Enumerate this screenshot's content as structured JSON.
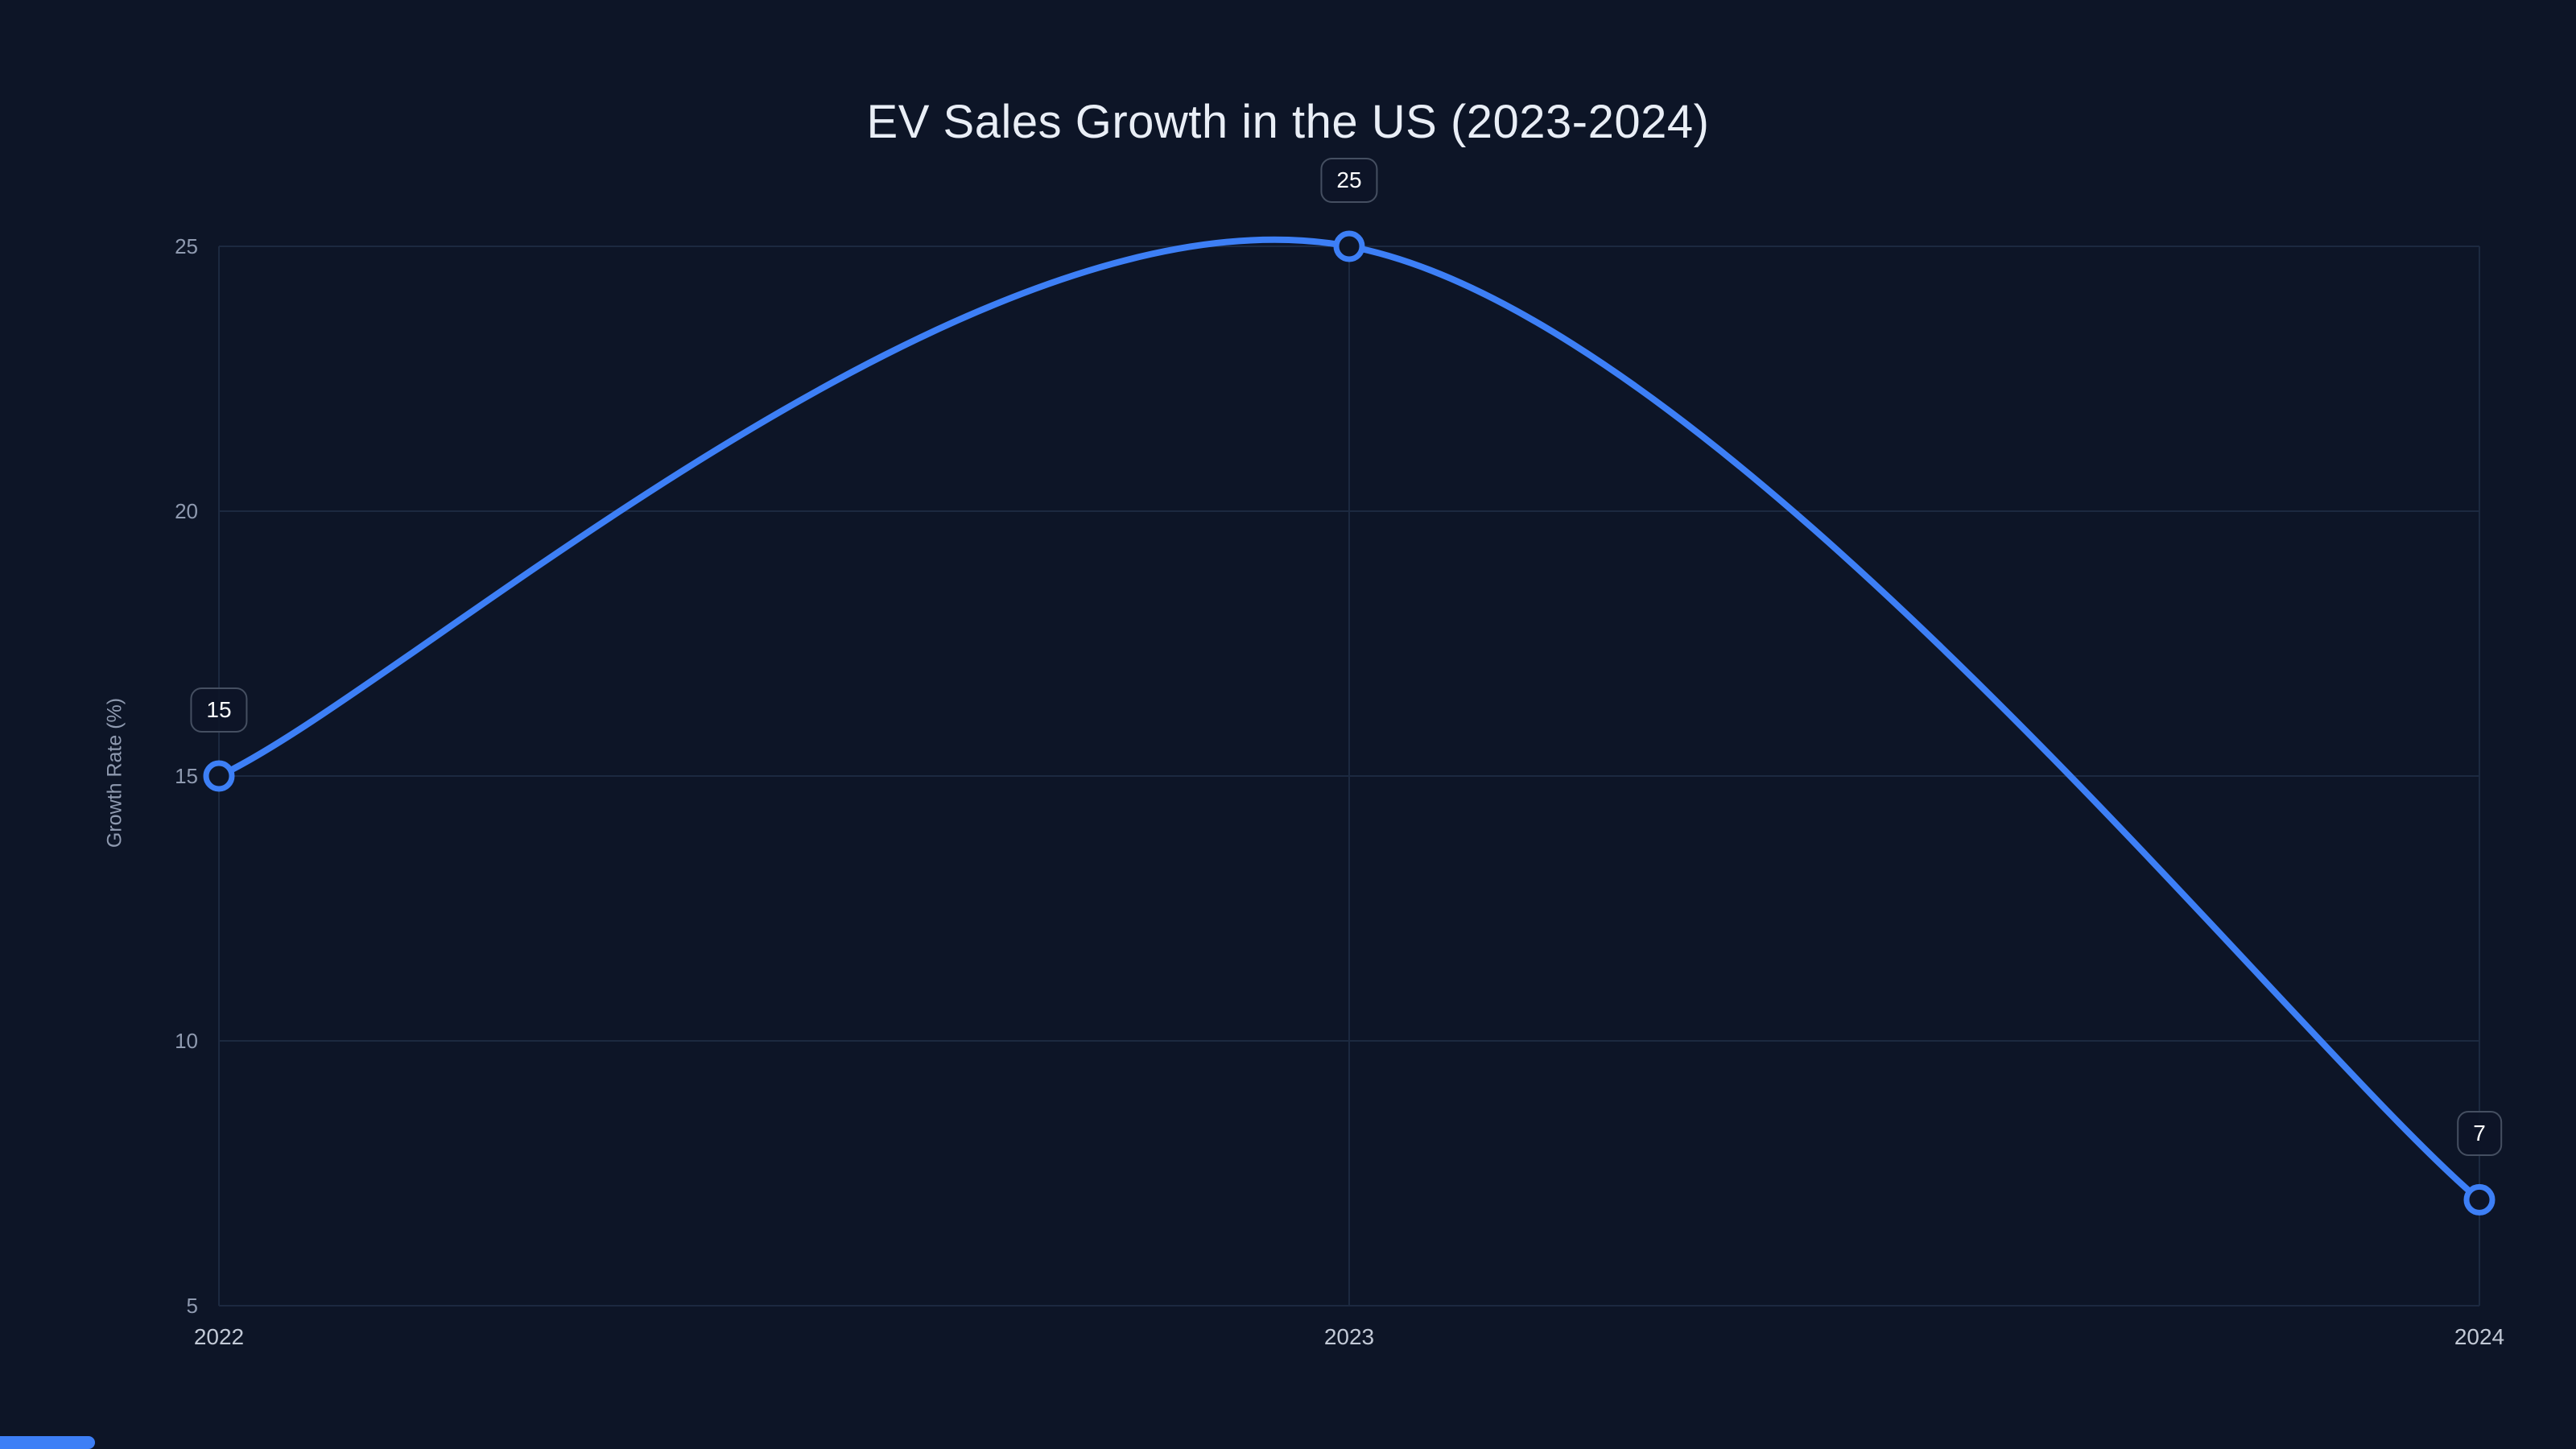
{
  "page": {
    "background": "#0d1527"
  },
  "chart_data": {
    "type": "line",
    "title": "EV Sales Growth in the US (2023-2024)",
    "xlabel": "",
    "ylabel": "Growth Rate (%)",
    "categories": [
      "2022",
      "2023",
      "2024"
    ],
    "series": [
      {
        "name": "Growth Rate (%)",
        "values": [
          15,
          25,
          7
        ]
      }
    ],
    "point_labels": [
      "15",
      "25",
      "7"
    ],
    "yticks": [
      5,
      10,
      15,
      20,
      25
    ],
    "ylim": [
      5,
      25
    ],
    "grid": true,
    "smooth": true,
    "legend_position": "none",
    "colors": {
      "line": "#3d7ff6",
      "background": "#0d1527",
      "grid": "#1c2940",
      "y_tick_text": "#8f9ab0",
      "x_tick_text": "#c2c9d6",
      "title_text": "#e9eef6",
      "marker_fill": "#0d1527",
      "badge_border": "#454f61",
      "badge_text": "#ffffff",
      "accent": "#3d7ff6"
    }
  }
}
